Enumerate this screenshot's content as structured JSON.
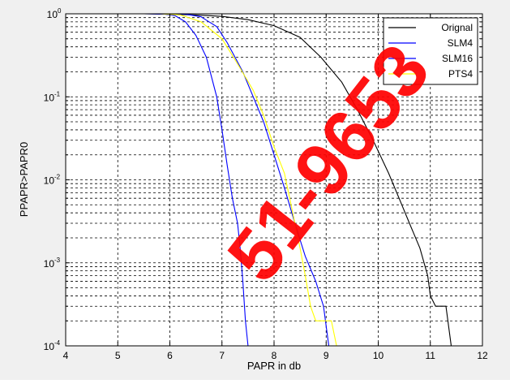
{
  "chart_data": {
    "type": "line",
    "title": "",
    "xlabel": "PAPR in db",
    "ylabel": "PPAPR>PAPR0",
    "xlim": [
      4,
      12
    ],
    "ylim": [
      0.0001,
      1
    ],
    "y_scale": "log",
    "grid": true,
    "legend_position": "top-right",
    "x_ticks": [
      "4",
      "5",
      "6",
      "7",
      "8",
      "9",
      "10",
      "11",
      "12"
    ],
    "y_tick_exponents": [
      "0",
      "-1",
      "-2",
      "-3",
      "-4"
    ],
    "y_tick_base": "10",
    "series": [
      {
        "name": "Orignal",
        "color": "#000000",
        "points": [
          [
            4.7,
            1
          ],
          [
            5.5,
            1
          ],
          [
            6.0,
            0.99
          ],
          [
            6.5,
            0.97
          ],
          [
            7.0,
            0.93
          ],
          [
            7.5,
            0.85
          ],
          [
            8.0,
            0.72
          ],
          [
            8.5,
            0.52
          ],
          [
            8.9,
            0.3
          ],
          [
            9.3,
            0.15
          ],
          [
            9.6,
            0.07
          ],
          [
            9.9,
            0.03
          ],
          [
            10.2,
            0.012
          ],
          [
            10.4,
            0.006
          ],
          [
            10.6,
            0.003
          ],
          [
            10.8,
            0.0015
          ],
          [
            10.95,
            0.0007
          ],
          [
            11.0,
            0.0004
          ],
          [
            11.1,
            0.0003
          ],
          [
            11.3,
            0.0003
          ],
          [
            11.4,
            0.0001
          ]
        ]
      },
      {
        "name": "SLM4",
        "color": "#0000ff",
        "points": [
          [
            4.7,
            1
          ],
          [
            5.5,
            1
          ],
          [
            5.9,
            0.99
          ],
          [
            6.1,
            0.95
          ],
          [
            6.3,
            0.8
          ],
          [
            6.5,
            0.55
          ],
          [
            6.7,
            0.3
          ],
          [
            6.9,
            0.1
          ],
          [
            7.0,
            0.04
          ],
          [
            7.1,
            0.015
          ],
          [
            7.2,
            0.006
          ],
          [
            7.3,
            0.003
          ],
          [
            7.35,
            0.0015
          ],
          [
            7.4,
            0.0006
          ],
          [
            7.45,
            0.0002
          ],
          [
            7.5,
            0.0001
          ]
        ]
      },
      {
        "name": "SLM16",
        "color": "#0000ff",
        "points": [
          [
            4.7,
            1
          ],
          [
            5.6,
            1
          ],
          [
            6.3,
            0.99
          ],
          [
            6.6,
            0.92
          ],
          [
            6.9,
            0.7
          ],
          [
            7.1,
            0.45
          ],
          [
            7.4,
            0.2
          ],
          [
            7.6,
            0.1
          ],
          [
            7.8,
            0.05
          ],
          [
            8.0,
            0.02
          ],
          [
            8.2,
            0.008
          ],
          [
            8.4,
            0.003
          ],
          [
            8.6,
            0.0012
          ],
          [
            8.8,
            0.0006
          ],
          [
            8.95,
            0.0003
          ],
          [
            9.05,
            0.0001
          ]
        ]
      },
      {
        "name": "PTS4",
        "color": "#ffff00",
        "points": [
          [
            4.7,
            1
          ],
          [
            5.8,
            1
          ],
          [
            6.2,
            0.97
          ],
          [
            6.6,
            0.8
          ],
          [
            7.0,
            0.5
          ],
          [
            7.3,
            0.25
          ],
          [
            7.6,
            0.12
          ],
          [
            7.8,
            0.06
          ],
          [
            8.0,
            0.025
          ],
          [
            8.2,
            0.012
          ],
          [
            8.3,
            0.006
          ],
          [
            8.4,
            0.003
          ],
          [
            8.5,
            0.0015
          ],
          [
            8.6,
            0.0007
          ],
          [
            8.7,
            0.0003
          ],
          [
            8.8,
            0.0002
          ],
          [
            9.1,
            0.0002
          ],
          [
            9.2,
            0.0001
          ]
        ]
      }
    ]
  },
  "watermark_text": "51-9653"
}
